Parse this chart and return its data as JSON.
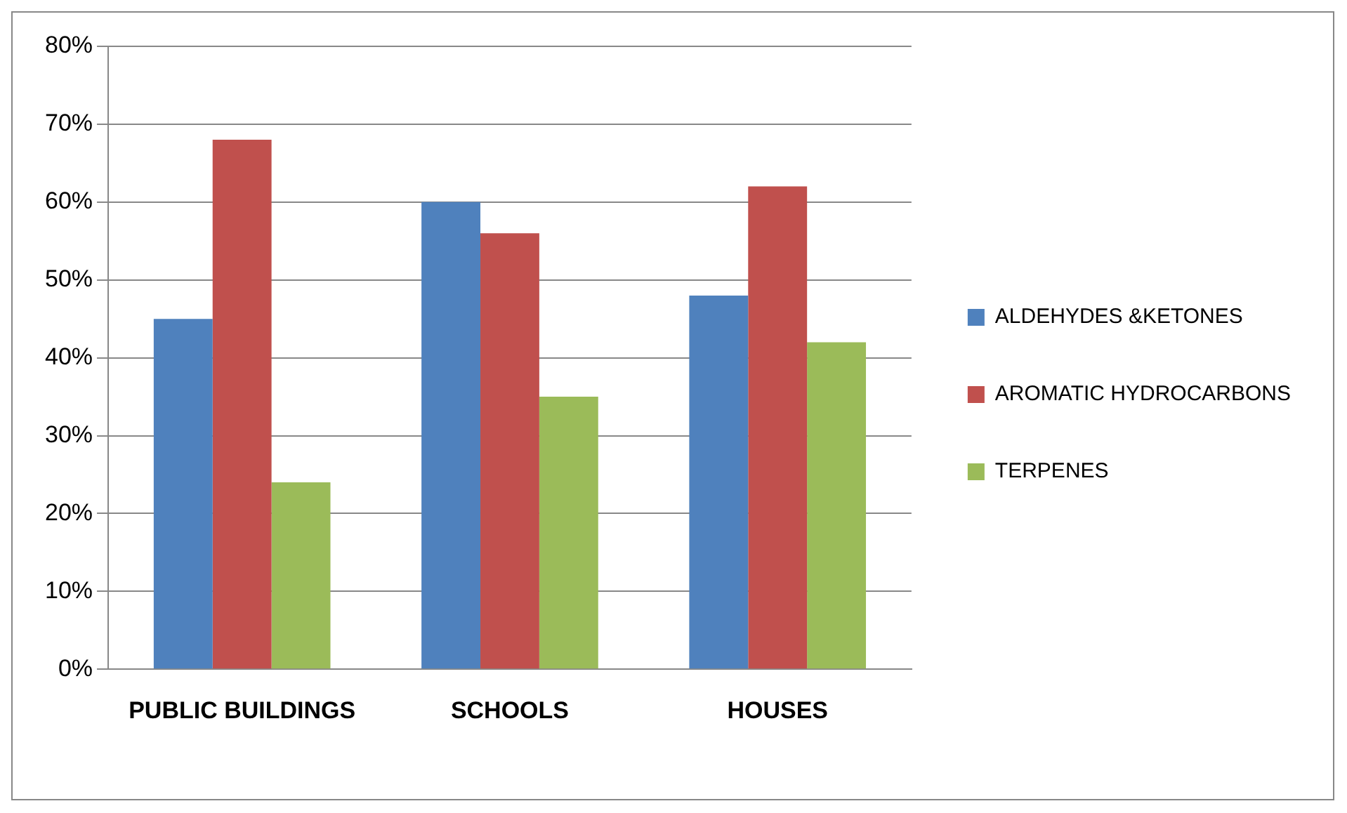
{
  "chart_data": {
    "type": "bar",
    "categories": [
      "PUBLIC BUILDINGS",
      "SCHOOLS",
      "HOUSES"
    ],
    "series": [
      {
        "name": "ALDEHYDES &KETONES",
        "color": "#4f81bd",
        "values": [
          45,
          60,
          48
        ]
      },
      {
        "name": "AROMATIC HYDROCARBONS",
        "color": "#c0504d",
        "values": [
          68,
          56,
          62
        ]
      },
      {
        "name": "TERPENES",
        "color": "#9bbb59",
        "values": [
          24,
          35,
          42
        ]
      }
    ],
    "ylim": [
      0,
      80
    ],
    "yticks": [
      {
        "value": 0,
        "label": "0%"
      },
      {
        "value": 10,
        "label": "10%"
      },
      {
        "value": 20,
        "label": "20%"
      },
      {
        "value": 30,
        "label": "30%"
      },
      {
        "value": 40,
        "label": "40%"
      },
      {
        "value": 50,
        "label": "50%"
      },
      {
        "value": 60,
        "label": "60%"
      },
      {
        "value": 70,
        "label": "70%"
      },
      {
        "value": 80,
        "label": "80%"
      }
    ],
    "grid": "y",
    "legend": "right"
  }
}
